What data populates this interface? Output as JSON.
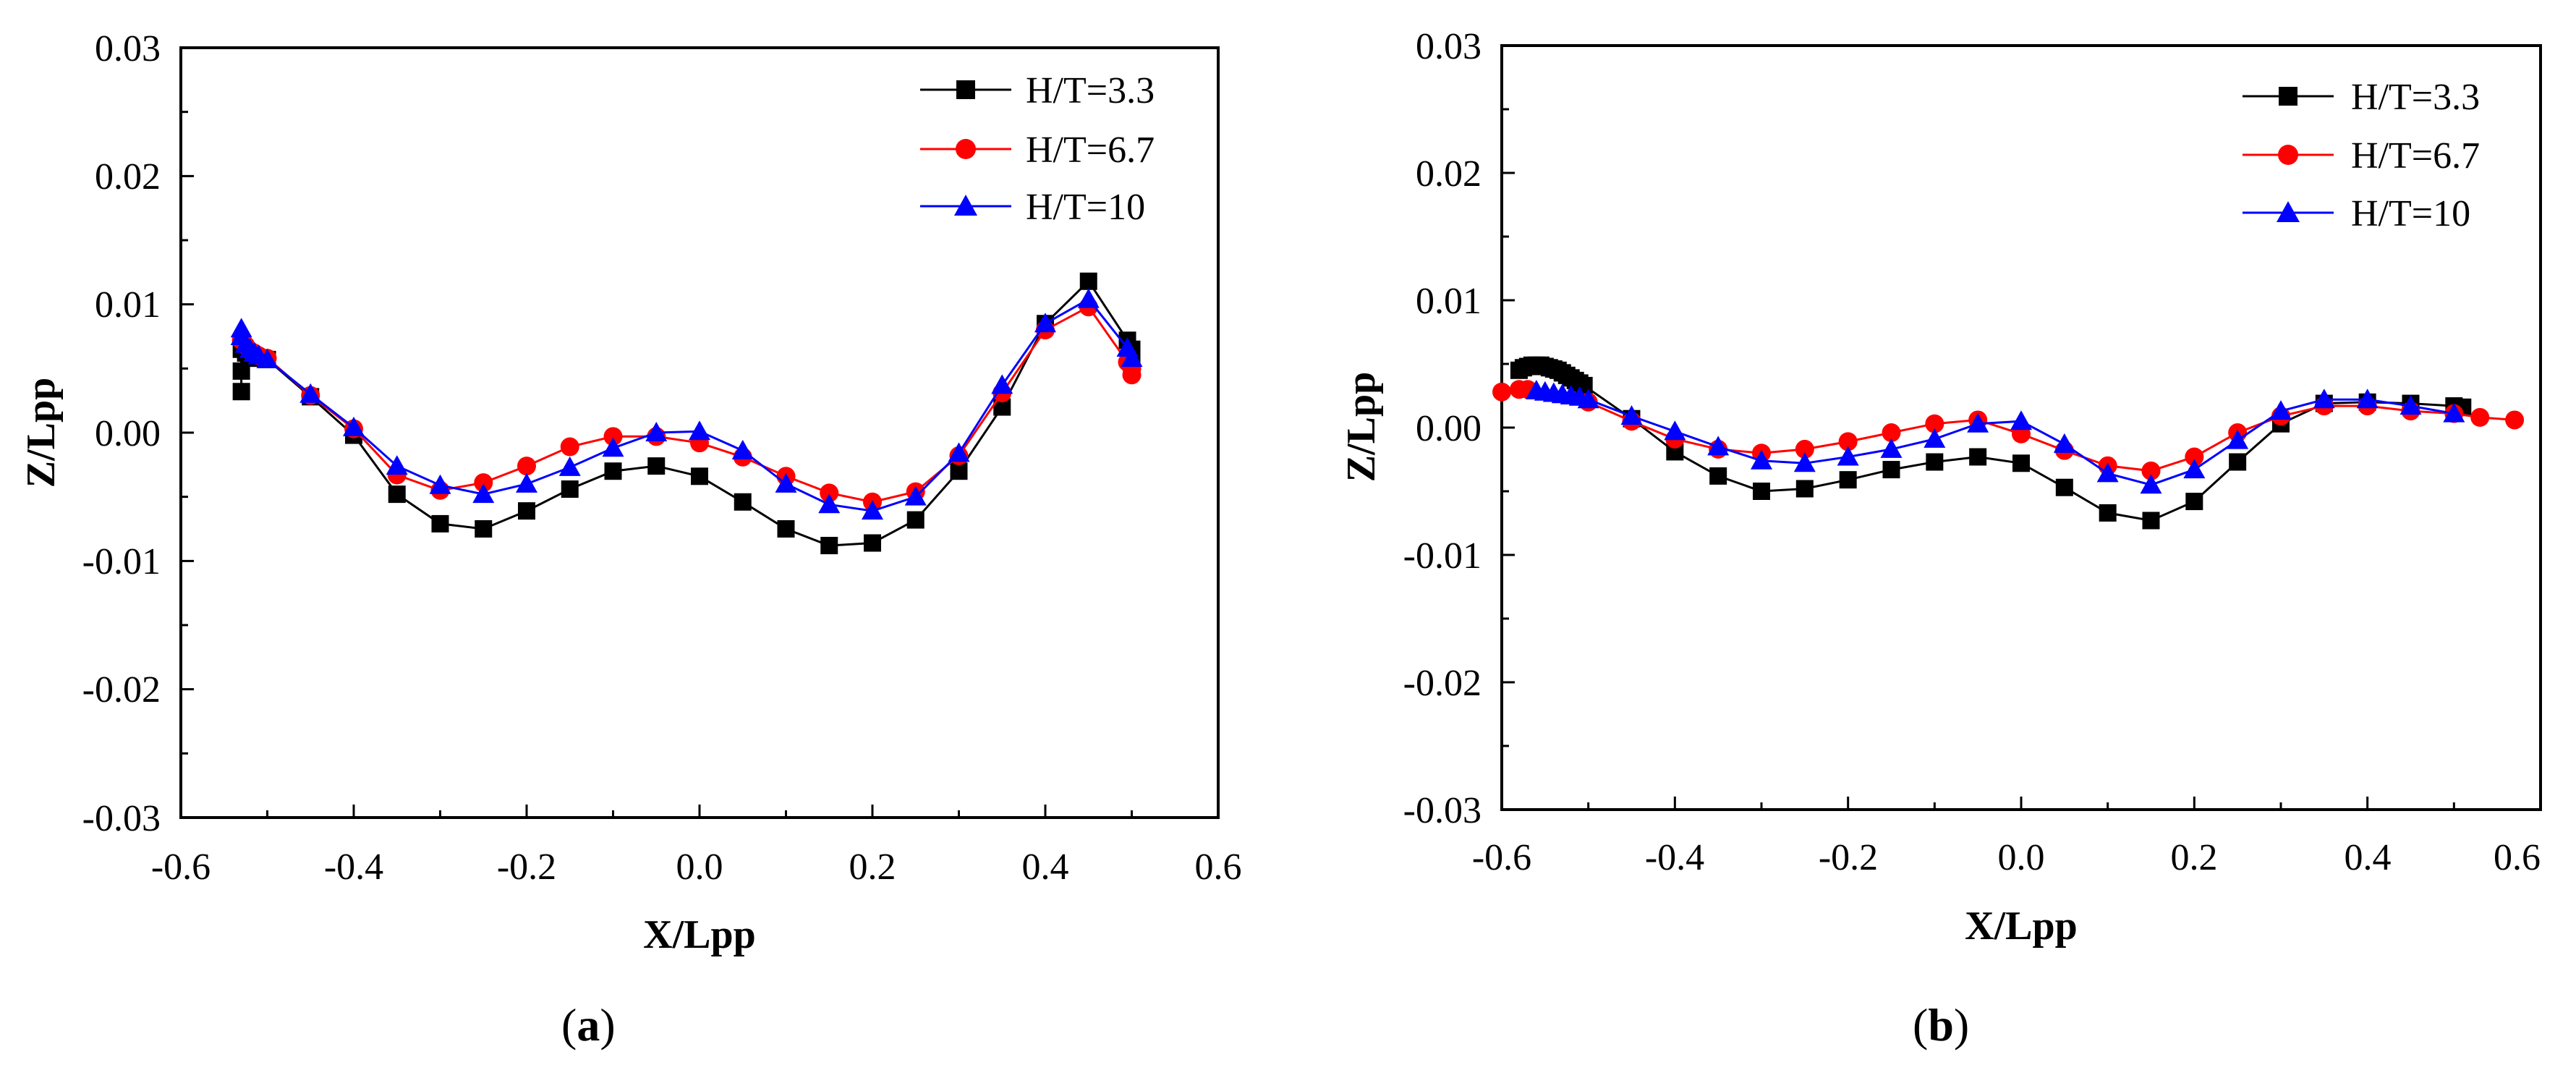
{
  "colors": {
    "h33": "#000000",
    "h67": "#ff0000",
    "h10": "#0000ff"
  },
  "charts": [
    {
      "panel_label": {
        "open": "(",
        "letter": "a",
        "close": ")"
      },
      "xlabel": "X/Lpp",
      "ylabel": "Z/Lpp",
      "xlim": [
        -0.6,
        0.6
      ],
      "ylim": [
        -0.03,
        0.03
      ],
      "xticks": [
        "-0.6",
        "-0.4",
        "-0.2",
        "0.0",
        "0.2",
        "0.4",
        "0.6"
      ],
      "yticks": [
        "-0.03",
        "-0.02",
        "-0.01",
        "0.00",
        "0.01",
        "0.02",
        "0.03"
      ],
      "legend": [
        "H/T=3.3",
        "H/T=6.7",
        "H/T=10"
      ]
    },
    {
      "panel_label": {
        "open": "(",
        "letter": "b",
        "close": ")"
      },
      "xlabel": "X/Lpp",
      "ylabel": "Z/Lpp",
      "xlim": [
        -0.6,
        0.6
      ],
      "ylim": [
        -0.03,
        0.03
      ],
      "xticks": [
        "-0.6",
        "-0.4",
        "-0.2",
        "0.0",
        "0.2",
        "0.4",
        "0.6"
      ],
      "yticks": [
        "-0.03",
        "-0.02",
        "-0.01",
        "0.00",
        "0.01",
        "0.02",
        "0.03"
      ],
      "legend": [
        "H/T=3.3",
        "H/T=6.7",
        "H/T=10"
      ]
    }
  ],
  "chart_data": [
    {
      "type": "line",
      "title": "(a)",
      "xlabel": "X/Lpp",
      "ylabel": "Z/Lpp",
      "xlim": [
        -0.6,
        0.6
      ],
      "ylim": [
        -0.03,
        0.03
      ],
      "series": [
        {
          "name": "H/T=3.3",
          "marker": "square",
          "color": "#000000",
          "x": [
            -0.53,
            -0.53,
            -0.53,
            -0.525,
            -0.52,
            -0.51,
            -0.5,
            -0.45,
            -0.4,
            -0.35,
            -0.3,
            -0.25,
            -0.2,
            -0.15,
            -0.1,
            -0.05,
            0.0,
            0.05,
            0.1,
            0.15,
            0.2,
            0.25,
            0.3,
            0.35,
            0.4,
            0.45,
            0.495,
            0.5,
            0.5
          ],
          "y": [
            0.0032,
            0.0048,
            0.0065,
            0.0062,
            0.006,
            0.0058,
            0.0057,
            0.0028,
            -0.0002,
            -0.0048,
            -0.0071,
            -0.0075,
            -0.0061,
            -0.0044,
            -0.003,
            -0.0026,
            -0.0034,
            -0.0054,
            -0.0075,
            -0.0088,
            -0.0086,
            -0.0068,
            -0.003,
            0.002,
            0.0085,
            0.0118,
            0.0072,
            0.0065,
            0.0052
          ]
        },
        {
          "name": "H/T=6.7",
          "marker": "circle",
          "color": "#ff0000",
          "x": [
            -0.53,
            -0.525,
            -0.52,
            -0.515,
            -0.51,
            -0.5,
            -0.45,
            -0.4,
            -0.35,
            -0.3,
            -0.25,
            -0.2,
            -0.15,
            -0.1,
            -0.05,
            0.0,
            0.05,
            0.1,
            0.15,
            0.2,
            0.25,
            0.3,
            0.35,
            0.4,
            0.45,
            0.495,
            0.5,
            0.5
          ],
          "y": [
            0.0072,
            0.0068,
            0.0064,
            0.0062,
            0.006,
            0.0058,
            0.0029,
            0.0003,
            -0.0033,
            -0.0045,
            -0.0039,
            -0.0026,
            -0.0011,
            -0.0003,
            -0.0003,
            -0.0008,
            -0.0019,
            -0.0034,
            -0.0047,
            -0.0054,
            -0.0046,
            -0.0018,
            0.0031,
            0.008,
            0.0098,
            0.0055,
            0.005,
            0.0045
          ]
        },
        {
          "name": "H/T=10",
          "marker": "triangle",
          "color": "#0000ff",
          "x": [
            -0.53,
            -0.53,
            -0.525,
            -0.52,
            -0.515,
            -0.51,
            -0.5,
            -0.45,
            -0.4,
            -0.35,
            -0.3,
            -0.25,
            -0.2,
            -0.15,
            -0.1,
            -0.05,
            0.0,
            0.05,
            0.1,
            0.15,
            0.2,
            0.25,
            0.3,
            0.35,
            0.4,
            0.45,
            0.495,
            0.5
          ],
          "y": [
            0.0081,
            0.0075,
            0.0069,
            0.0065,
            0.0062,
            0.006,
            0.0057,
            0.003,
            0.0004,
            -0.0026,
            -0.0041,
            -0.0048,
            -0.004,
            -0.0027,
            -0.0012,
            0.0,
            0.0001,
            -0.0014,
            -0.004,
            -0.0056,
            -0.0061,
            -0.005,
            -0.0016,
            0.0037,
            0.0085,
            0.0104,
            0.0066,
            0.0058
          ]
        }
      ]
    },
    {
      "type": "line",
      "title": "(b)",
      "xlabel": "X/Lpp",
      "ylabel": "Z/Lpp",
      "xlim": [
        -0.6,
        0.6
      ],
      "ylim": [
        -0.03,
        0.03
      ],
      "series": [
        {
          "name": "H/T=3.3",
          "marker": "square",
          "color": "#000000",
          "x": [
            -0.58,
            -0.575,
            -0.57,
            -0.565,
            -0.56,
            -0.555,
            -0.55,
            -0.545,
            -0.54,
            -0.535,
            -0.53,
            -0.525,
            -0.52,
            -0.515,
            -0.51,
            -0.505,
            -0.45,
            -0.4,
            -0.35,
            -0.3,
            -0.25,
            -0.2,
            -0.15,
            -0.1,
            -0.05,
            0.0,
            0.05,
            0.1,
            0.15,
            0.2,
            0.25,
            0.3,
            0.35,
            0.4,
            0.45,
            0.5,
            0.51
          ],
          "y": [
            0.0045,
            0.0047,
            0.0048,
            0.0049,
            0.0049,
            0.0049,
            0.0048,
            0.0047,
            0.0046,
            0.0045,
            0.0043,
            0.0041,
            0.0039,
            0.0037,
            0.0035,
            0.0033,
            0.0007,
            -0.0019,
            -0.0038,
            -0.005,
            -0.0048,
            -0.0041,
            -0.0033,
            -0.0027,
            -0.0023,
            -0.0028,
            -0.0047,
            -0.0067,
            -0.0073,
            -0.0058,
            -0.0027,
            0.0003,
            0.0019,
            0.002,
            0.0019,
            0.0017,
            0.0016
          ]
        },
        {
          "name": "H/T=6.7",
          "marker": "circle",
          "color": "#ff0000",
          "x": [
            -0.6,
            -0.58,
            -0.57,
            -0.5,
            -0.45,
            -0.4,
            -0.35,
            -0.3,
            -0.25,
            -0.2,
            -0.15,
            -0.1,
            -0.05,
            0.0,
            0.05,
            0.1,
            0.15,
            0.2,
            0.25,
            0.3,
            0.35,
            0.4,
            0.45,
            0.5,
            0.53,
            0.57
          ],
          "y": [
            0.0028,
            0.003,
            0.003,
            0.002,
            0.0005,
            -0.0009,
            -0.0017,
            -0.002,
            -0.0017,
            -0.0011,
            -0.0004,
            0.0003,
            0.0006,
            -0.0005,
            -0.0018,
            -0.003,
            -0.0034,
            -0.0023,
            -0.0004,
            0.0009,
            0.0017,
            0.0017,
            0.0013,
            0.0011,
            0.0008,
            0.0006
          ]
        },
        {
          "name": "H/T=10",
          "marker": "triangle",
          "color": "#0000ff",
          "x": [
            -0.56,
            -0.55,
            -0.54,
            -0.53,
            -0.52,
            -0.51,
            -0.5,
            -0.45,
            -0.4,
            -0.35,
            -0.3,
            -0.25,
            -0.2,
            -0.15,
            -0.1,
            -0.05,
            0.0,
            0.05,
            0.1,
            0.15,
            0.2,
            0.25,
            0.3,
            0.35,
            0.4,
            0.45,
            0.5
          ],
          "y": [
            0.0029,
            0.0028,
            0.0027,
            0.0026,
            0.0025,
            0.0024,
            0.0022,
            0.0009,
            -0.0003,
            -0.0015,
            -0.0026,
            -0.0028,
            -0.0023,
            -0.0017,
            -0.0009,
            0.0003,
            0.0005,
            -0.0013,
            -0.0036,
            -0.0045,
            -0.0033,
            -0.001,
            0.0013,
            0.0022,
            0.0022,
            0.0017,
            0.0011
          ]
        }
      ]
    }
  ]
}
